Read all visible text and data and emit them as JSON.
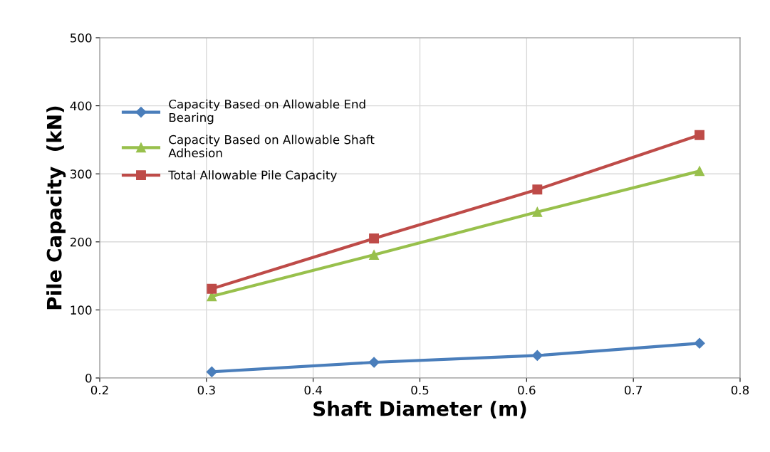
{
  "chart_data": {
    "type": "line",
    "xlabel": "Shaft Diameter (m)",
    "ylabel": "Pile Capacity  (kN)",
    "x": [
      0.305,
      0.457,
      0.61,
      0.762
    ],
    "series": [
      {
        "name": "Capacity Based on Allowable End\nBearing",
        "color": "#4a7ebb",
        "marker": "diamond",
        "values": [
          9,
          23,
          33,
          51
        ]
      },
      {
        "name": "Capacity Based on Allowable Shaft\nAdhesion",
        "color": "#98c04c",
        "marker": "triangle",
        "values": [
          120,
          181,
          244,
          304
        ]
      },
      {
        "name": "Total Allowable Pile Capacity",
        "color": "#be4b48",
        "marker": "square",
        "values": [
          131,
          205,
          277,
          357
        ]
      }
    ],
    "xlim": [
      0.2,
      0.8
    ],
    "xticks": [
      0.2,
      0.3,
      0.4,
      0.5,
      0.6,
      0.7,
      0.8
    ],
    "ylim": [
      0,
      500
    ],
    "yticks": [
      0,
      100,
      200,
      300,
      400,
      500
    ],
    "grid": true,
    "legend": "top left",
    "line_style": "solid"
  }
}
